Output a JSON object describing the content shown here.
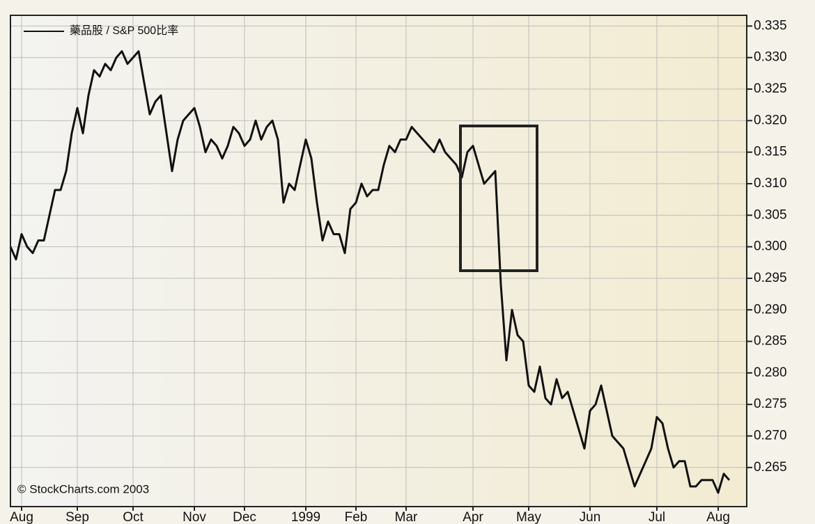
{
  "chart_data": {
    "type": "line",
    "series": [
      {
        "name": "藥品股 / S&P 500比率",
        "color": "#111111",
        "values": [
          0.3,
          0.298,
          0.302,
          0.3,
          0.299,
          0.301,
          0.301,
          0.305,
          0.309,
          0.309,
          0.312,
          0.318,
          0.322,
          0.318,
          0.324,
          0.328,
          0.327,
          0.329,
          0.328,
          0.33,
          0.331,
          0.329,
          0.33,
          0.331,
          0.326,
          0.321,
          0.323,
          0.324,
          0.318,
          0.312,
          0.317,
          0.32,
          0.321,
          0.322,
          0.319,
          0.315,
          0.317,
          0.316,
          0.314,
          0.316,
          0.319,
          0.318,
          0.316,
          0.317,
          0.32,
          0.317,
          0.319,
          0.32,
          0.317,
          0.307,
          0.31,
          0.309,
          0.313,
          0.317,
          0.314,
          0.307,
          0.301,
          0.304,
          0.302,
          0.302,
          0.299,
          0.306,
          0.307,
          0.31,
          0.308,
          0.309,
          0.309,
          0.313,
          0.316,
          0.315,
          0.317,
          0.317,
          0.319,
          0.318,
          0.317,
          0.316,
          0.315,
          0.317,
          0.315,
          0.314,
          0.313,
          0.311,
          0.315,
          0.316,
          0.313,
          0.31,
          0.311,
          0.312,
          0.294,
          0.282,
          0.29,
          0.286,
          0.285,
          0.278,
          0.277,
          0.281,
          0.276,
          0.275,
          0.279,
          0.276,
          0.277,
          0.274,
          0.271,
          0.268,
          0.274,
          0.275,
          0.278,
          0.274,
          0.27,
          0.269,
          0.268,
          0.265,
          0.262,
          0.264,
          0.266,
          0.268,
          0.273,
          0.272,
          0.268,
          0.265,
          0.266,
          0.266,
          0.262,
          0.262,
          0.263,
          0.263,
          0.263,
          0.261,
          0.264,
          0.263
        ]
      }
    ],
    "categories": [
      null,
      null,
      "Aug",
      null,
      null,
      null,
      null,
      null,
      null,
      null,
      null,
      null,
      "Sep",
      null,
      null,
      null,
      null,
      null,
      null,
      null,
      null,
      null,
      "Oct",
      null,
      null,
      null,
      null,
      null,
      null,
      null,
      null,
      null,
      null,
      "Nov",
      null,
      null,
      null,
      null,
      null,
      null,
      null,
      null,
      "Dec",
      null,
      null,
      null,
      null,
      null,
      null,
      null,
      null,
      null,
      null,
      "1999",
      null,
      null,
      null,
      null,
      null,
      null,
      null,
      null,
      "Feb",
      null,
      null,
      null,
      null,
      null,
      null,
      null,
      null,
      "Mar",
      null,
      null,
      null,
      null,
      null,
      null,
      null,
      null,
      null,
      null,
      null,
      "Apr",
      null,
      null,
      null,
      null,
      null,
      null,
      null,
      null,
      null,
      "May",
      null,
      null,
      null,
      null,
      null,
      null,
      null,
      null,
      null,
      null,
      "Jun",
      null,
      null,
      null,
      null,
      null,
      null,
      null,
      null,
      null,
      null,
      null,
      "Jul",
      null,
      null,
      null,
      null,
      null,
      null,
      null,
      null,
      null,
      null,
      "Aug",
      null,
      null
    ],
    "ylim": [
      0.2588,
      0.3367
    ],
    "yticks": [
      0.265,
      {
        "value": 0.27,
        "label": "0.270"
      },
      0.275,
      {
        "value": 0.28,
        "label": "0.280"
      },
      0.285,
      {
        "value": 0.29,
        "label": "0.290"
      },
      0.295,
      {
        "value": 0.3,
        "label": "0.300"
      },
      0.305,
      {
        "value": 0.31,
        "label": "0.310"
      },
      0.315,
      {
        "value": 0.32,
        "label": "0.320"
      },
      0.325,
      {
        "value": 0.33,
        "label": "0.330"
      },
      0.335
    ],
    "grid": true,
    "annotations": [
      "© StockCharts.com 2003"
    ]
  }
}
